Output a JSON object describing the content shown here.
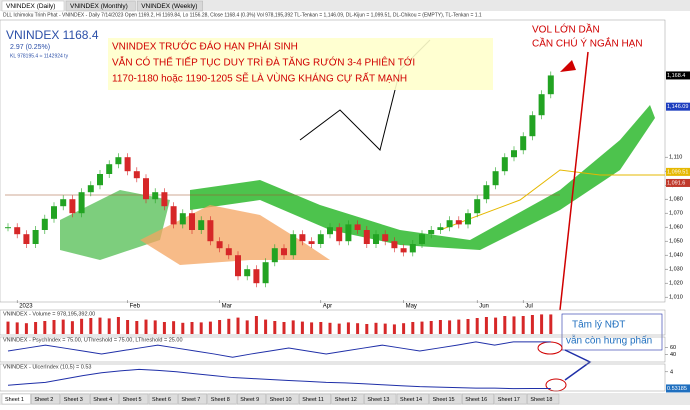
{
  "tabs": [
    "VNINDEX (Daily)",
    "VNINDEX (Monthly)",
    "VNINDEX (Weekly)"
  ],
  "header": "DLL Ichimoku Trinh Phat - VNINDEX - Daily 7/14/2023 Open 1169.2, Hi 1169.84, Lo 1156.28, Close 1168.4 (0.3%) Vol 978,195,392 TL-Tenkan = 1,146.09, DL-Kijun = 1,099.51, DL-Chikou = (EMPTY), TL-Tenkan = 1.1",
  "quote": {
    "symbol": "VNINDEX 1168.4",
    "change": "2.97 (0.25%)",
    "volume": "KL 978195.4 ≈ 1142924 ty"
  },
  "annotation": [
    "VNINDEX TRƯỚC ĐÁO HẠN PHÁI SINH",
    "VẪN CÓ THỂ TIẾP TỤC DUY TRÌ ĐÀ TĂNG RƯỚN 3-4 PHIÊN TỚI",
    "1170-1180 hoặc 1190-1205 SẼ LÀ VÙNG KHÁNG CỰ RẤT MẠNH"
  ],
  "warning": [
    "VOL LỚN DẦN",
    "CẦN CHÚ Ý NGẮN HẠN"
  ],
  "sentiment": [
    "Tâm lý NĐT",
    "vẫn còn hưng phấn"
  ],
  "chart_data": [
    {
      "type": "candlestick",
      "name": "price",
      "categories": [
        null,
        "2023",
        null,
        null,
        null,
        null,
        null,
        null,
        null,
        null,
        null,
        null,
        null,
        "Feb",
        null,
        null,
        null,
        null,
        null,
        null,
        null,
        null,
        null,
        "Mar",
        null,
        null,
        null,
        null,
        null,
        null,
        null,
        null,
        null,
        null,
        "Apr",
        null,
        null,
        null,
        null,
        null,
        null,
        null,
        null,
        "May",
        null,
        null,
        null,
        null,
        null,
        null,
        null,
        "Jun",
        null,
        null,
        null,
        null,
        "Jul",
        null,
        null,
        null
      ],
      "values": [
        1060,
        1055,
        1048,
        1058,
        1066,
        1075,
        1080,
        1070,
        1085,
        1090,
        1098,
        1105,
        1110,
        1100,
        1095,
        1080,
        1085,
        1075,
        1062,
        1070,
        1058,
        1065,
        1050,
        1045,
        1040,
        1025,
        1030,
        1020,
        1035,
        1045,
        1040,
        1055,
        1050,
        1048,
        1055,
        1060,
        1050,
        1062,
        1058,
        1048,
        1055,
        1050,
        1045,
        1042,
        1048,
        1055,
        1058,
        1060,
        1065,
        1062,
        1070,
        1080,
        1090,
        1100,
        1110,
        1115,
        1125,
        1140,
        1155,
        1168.4
      ],
      "up_color": "#22a322",
      "down_color": "#d62728",
      "ylim": [
        1008,
        1208
      ],
      "yticks": [
        {
          "value": 1010,
          "label": "1,010"
        },
        {
          "value": 1020,
          "label": "1,020"
        },
        {
          "value": 1030,
          "label": "1,030"
        },
        {
          "value": 1040,
          "label": "1,040"
        },
        {
          "value": 1050,
          "label": "1,050"
        },
        {
          "value": 1060,
          "label": "1,060"
        },
        {
          "value": 1070,
          "label": "1,070"
        },
        {
          "value": 1080,
          "label": "1,080"
        },
        {
          "value": 1090,
          "label": "1,090"
        },
        {
          "value": 1100,
          "label": "1,100"
        },
        {
          "value": 1110,
          "label": "1,110"
        }
      ],
      "tags": [
        {
          "value": 1168.4,
          "label": "1,168.4",
          "color": "#000000"
        },
        {
          "value": 1146.09,
          "label": "1,146.09",
          "color": "#1f3fbf"
        },
        {
          "value": 1099.51,
          "label": "1,099.51",
          "color": "#e5b800"
        },
        {
          "value": 1091.6,
          "label": "1,091.6",
          "color": "#c0392b"
        }
      ]
    },
    {
      "type": "bar",
      "name": "volume",
      "title": "VNINDEX - Volume = 978,195,392.00",
      "color": "#d62728",
      "values": [
        620,
        580,
        540,
        600,
        650,
        700,
        720,
        640,
        760,
        800,
        820,
        780,
        850,
        700,
        650,
        720,
        680,
        600,
        640,
        560,
        600,
        580,
        620,
        700,
        760,
        820,
        680,
        900,
        720,
        650,
        600,
        680,
        620,
        580,
        600,
        560,
        520,
        580,
        540,
        500,
        560,
        520,
        480,
        540,
        600,
        620,
        650,
        700,
        680,
        720,
        750,
        800,
        850,
        820,
        900,
        880,
        900,
        950,
        980,
        978.2
      ],
      "ylim": [
        0,
        1000
      ]
    },
    {
      "type": "line",
      "name": "psych",
      "title": "VNINDEX - PsychIndex = 75.00, UThreshold = 75.00, LThreshold = 25.00",
      "color": "#1f2fa8",
      "values": [
        50,
        58,
        66,
        58,
        50,
        42,
        50,
        58,
        66,
        58,
        50,
        42,
        33,
        42,
        50,
        58,
        50,
        42,
        50,
        58,
        66,
        58,
        50,
        58,
        66,
        75,
        66,
        75,
        75,
        75
      ],
      "ylim": [
        20,
        80
      ],
      "yticks": [
        40,
        60
      ]
    },
    {
      "type": "line",
      "name": "ulcer",
      "title": "VNINDEX - UlcerIndex (10,5) = 0.53",
      "color": "#1f2fa8",
      "values": [
        1.2,
        1.5,
        1.8,
        2.5,
        3.2,
        3.8,
        4.2,
        4.5,
        4.3,
        4.0,
        3.6,
        3.2,
        2.8,
        2.6,
        2.4,
        2.2,
        2.0,
        1.8,
        1.7,
        1.5,
        1.3,
        1.1,
        0.9,
        0.8,
        0.7,
        0.6,
        0.6,
        0.5,
        0.53,
        0.53
      ],
      "ylim": [
        0,
        5
      ],
      "yticks": [
        4
      ],
      "tag": {
        "value": 0.53185,
        "label": "0.53185"
      }
    }
  ],
  "sheets": [
    "Sheet 1",
    "Sheet 2",
    "Sheet 3",
    "Sheet 4",
    "Sheet 5",
    "Sheet 6",
    "Sheet 7",
    "Sheet 8",
    "Sheet 9",
    "Sheet 10",
    "Sheet 11",
    "Sheet 12",
    "Sheet 13",
    "Sheet 14",
    "Sheet 15",
    "Sheet 16",
    "Sheet 17",
    "Sheet 18"
  ]
}
